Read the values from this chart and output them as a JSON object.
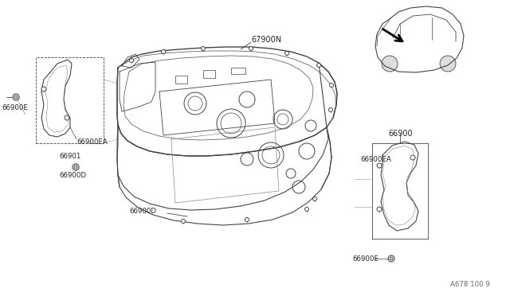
{
  "bg_color": "#ffffff",
  "labels": {
    "main_part": "67900N",
    "left_part_top": "66900E",
    "left_part_box": "66900EA",
    "left_screw1": "66901",
    "left_screw2": "66900D",
    "center_screw": "66900D",
    "right_part_top": "66900",
    "right_part_box": "66900EA",
    "right_screw": "66900E",
    "diagram_code": "A678 100 9"
  },
  "lc": "#444444",
  "tc": "#222222",
  "fs": 7.0,
  "sfs": 6.2
}
